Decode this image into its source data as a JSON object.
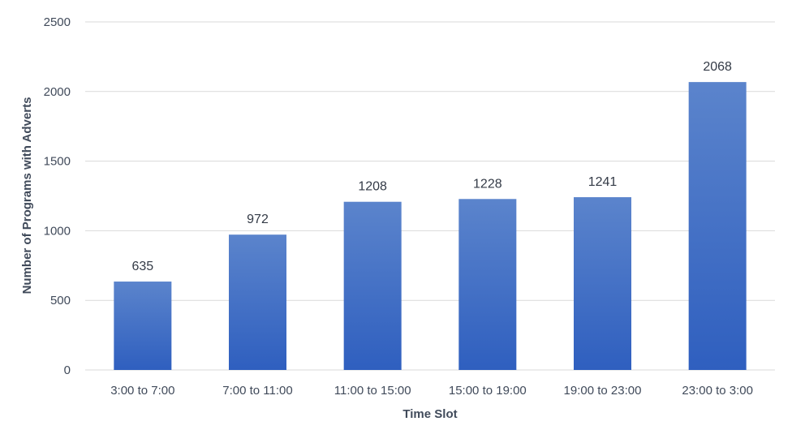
{
  "chart_data": {
    "type": "bar",
    "title": "",
    "xlabel": "Time Slot",
    "ylabel": "Number of Programs with Adverts",
    "categories": [
      "3:00 to 7:00",
      "7:00 to 11:00",
      "11:00 to 15:00",
      "15:00 to 19:00",
      "19:00 to 23:00",
      "23:00 to 3:00"
    ],
    "values": [
      635,
      972,
      1208,
      1228,
      1241,
      2068
    ],
    "data_labels": [
      "635",
      "972",
      "1208",
      "1228",
      "1241",
      "2068"
    ],
    "ylim": [
      0,
      2500
    ],
    "yticks": [
      0,
      500,
      1000,
      1500,
      2000,
      2500
    ],
    "ytick_labels": [
      "0",
      "500",
      "1000",
      "1500",
      "2000",
      "2500"
    ],
    "grid": true,
    "legend": "none",
    "colors": {
      "bar_top": "#5b84cc",
      "bar_bottom": "#2f5fbf",
      "grid": "#d9d9d9",
      "text": "#404a5a"
    }
  }
}
